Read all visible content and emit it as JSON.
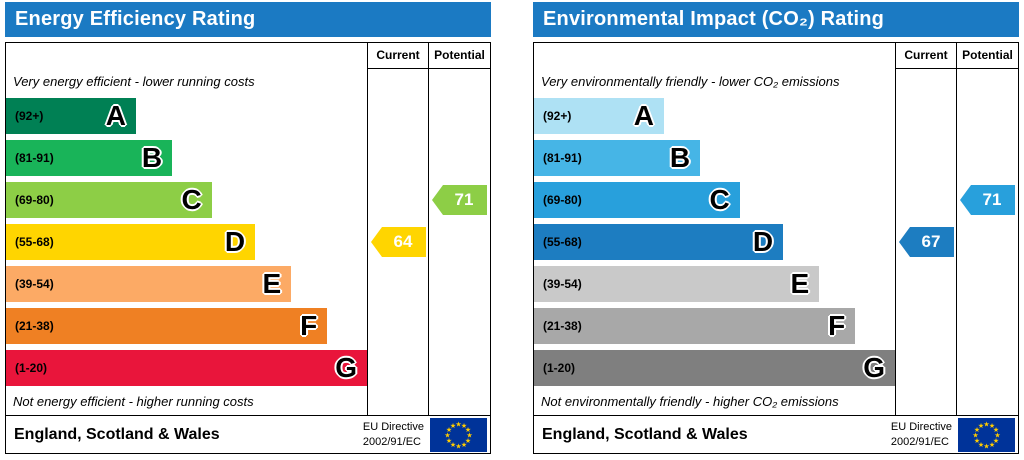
{
  "chart_data": [
    {
      "type": "bar",
      "title": "Energy Efficiency Rating",
      "top_label": "Very energy efficient - lower running costs",
      "bottom_label": "Not energy efficient - higher running costs",
      "columns": {
        "current": "Current",
        "potential": "Potential"
      },
      "bands": [
        {
          "letter": "A",
          "range": "(92+)",
          "color": "#008054",
          "width_pct": 36
        },
        {
          "letter": "B",
          "range": "(81-91)",
          "color": "#19b459",
          "width_pct": 46
        },
        {
          "letter": "C",
          "range": "(69-80)",
          "color": "#8dce46",
          "width_pct": 57
        },
        {
          "letter": "D",
          "range": "(55-68)",
          "color": "#ffd500",
          "width_pct": 69
        },
        {
          "letter": "E",
          "range": "(39-54)",
          "color": "#fcaa65",
          "width_pct": 79
        },
        {
          "letter": "F",
          "range": "(21-38)",
          "color": "#ef8023",
          "width_pct": 89
        },
        {
          "letter": "G",
          "range": "(1-20)",
          "color": "#e9153b",
          "width_pct": 100
        }
      ],
      "current": {
        "value": 64,
        "band": "D",
        "color": "#ffd500"
      },
      "potential": {
        "value": 71,
        "band": "C",
        "color": "#8dce46"
      },
      "footer": {
        "region": "England, Scotland & Wales",
        "directive_line1": "EU Directive",
        "directive_line2": "2002/91/EC"
      }
    },
    {
      "type": "bar",
      "title": "Environmental Impact (CO₂) Rating",
      "top_label": "Very environmentally friendly - lower CO₂ emissions",
      "bottom_label": "Not environmentally friendly - higher CO₂ emissions",
      "columns": {
        "current": "Current",
        "potential": "Potential"
      },
      "bands": [
        {
          "letter": "A",
          "range": "(92+)",
          "color": "#aee1f4",
          "width_pct": 36
        },
        {
          "letter": "B",
          "range": "(81-91)",
          "color": "#46b5e6",
          "width_pct": 46
        },
        {
          "letter": "C",
          "range": "(69-80)",
          "color": "#28a0dc",
          "width_pct": 57
        },
        {
          "letter": "D",
          "range": "(55-68)",
          "color": "#1d7dc1",
          "width_pct": 69
        },
        {
          "letter": "E",
          "range": "(39-54)",
          "color": "#c9c9c9",
          "width_pct": 79
        },
        {
          "letter": "F",
          "range": "(21-38)",
          "color": "#a8a8a8",
          "width_pct": 89
        },
        {
          "letter": "G",
          "range": "(1-20)",
          "color": "#7f7f7f",
          "width_pct": 100
        }
      ],
      "current": {
        "value": 67,
        "band": "D",
        "color": "#1d7dc1"
      },
      "potential": {
        "value": 71,
        "band": "C",
        "color": "#28a0dc"
      },
      "footer": {
        "region": "England, Scotland & Wales",
        "directive_line1": "EU Directive",
        "directive_line2": "2002/91/EC"
      }
    }
  ]
}
